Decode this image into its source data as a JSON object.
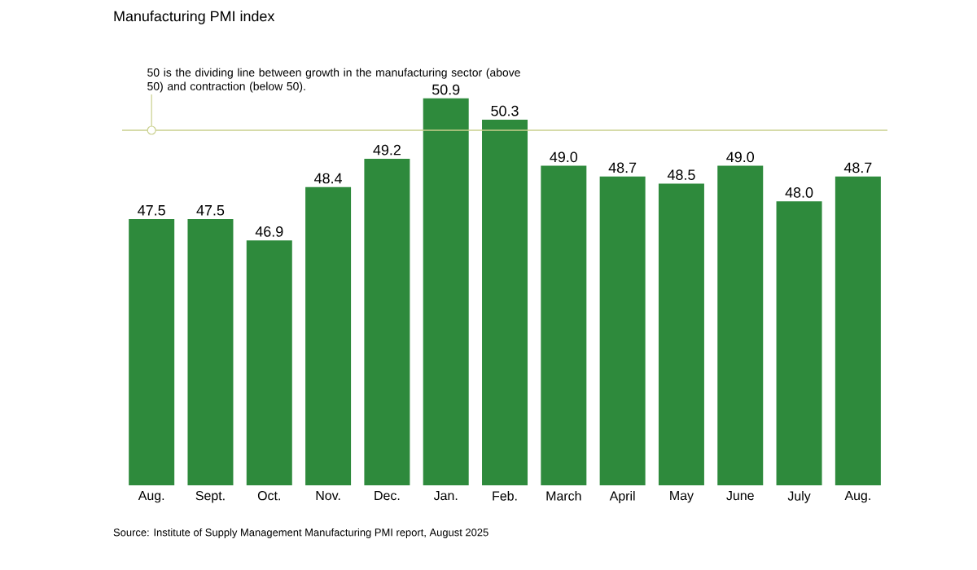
{
  "chart_data": {
    "type": "bar",
    "title": "Manufacturing PMI index",
    "categories": [
      "Aug.",
      "Sept.",
      "Oct.",
      "Nov.",
      "Dec.",
      "Jan.",
      "Feb.",
      "March",
      "April",
      "May",
      "June",
      "July",
      "Aug."
    ],
    "values": [
      47.5,
      47.5,
      46.9,
      48.4,
      49.2,
      50.9,
      50.3,
      49.0,
      48.7,
      48.5,
      49.0,
      48.0,
      48.7
    ],
    "value_labels": [
      "47.5",
      "47.5",
      "46.9",
      "48.4",
      "49.2",
      "50.9",
      "50.3",
      "49.0",
      "48.7",
      "48.5",
      "49.0",
      "48.0",
      "48.7"
    ],
    "color": "#2e8a3c",
    "ylim": [
      40,
      50.9
    ],
    "tick_labels": "x",
    "ref_lines": [
      {
        "axis": "y",
        "value": 50,
        "label": "50 is the dividing line between growth in the manufacturing sector (above 50) and contraction (below 50).",
        "color": "#c9cf8c"
      }
    ],
    "annotations": [
      "Source: Institute of Supply Management Manufacturing PMI report, August 2025"
    ]
  }
}
